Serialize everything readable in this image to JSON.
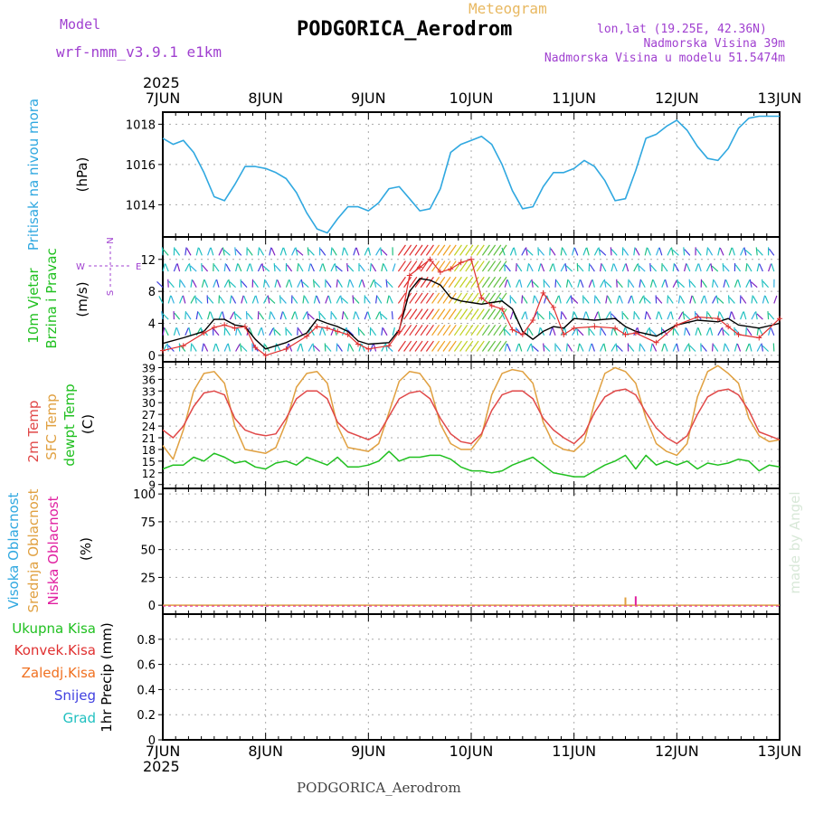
{
  "header": {
    "model_label": "Model",
    "model_name": "wrf-nmm_v3.9.1 e1km",
    "title": "PODGORICA_Aerodrom",
    "subtitle": "Meteogram",
    "coords": "lon,lat (19.25E, 42.36N)",
    "elevation": "Nadmorska Visina 39m",
    "model_elevation": "Nadmorska Visina u modelu 51.5474m",
    "year_top": "2025",
    "year_bottom": "2025",
    "footer_title": "PODGORICA_Aerodrom",
    "credit": "made by Angel"
  },
  "colors": {
    "pressure": "#30a8e0",
    "temp2m": "#e04848",
    "sfc_temp": "#e0a040",
    "dewpoint": "#20c020",
    "wind_speed": "#000000",
    "gust": "#e03030",
    "high_cloud": "#30a8e0",
    "mid_cloud": "#e0a040",
    "low_cloud": "#e020a0",
    "total_precip": "#20c020",
    "conv_precip": "#e03030",
    "frozen_precip": "#f07020",
    "snow": "#4040e0",
    "hail": "#20c0c0"
  },
  "chart_data": [
    {
      "id": "pressure",
      "type": "line",
      "ylabels": [
        "Pritisak na nivou mora",
        "(hPa)"
      ],
      "x_ticks": [
        "7JUN",
        "8JUN",
        "9JUN",
        "10JUN",
        "11JUN",
        "12JUN",
        "13JUN"
      ],
      "ylim": [
        1012.4,
        1018.6
      ],
      "yticks": [
        1014,
        1016,
        1018
      ],
      "grid": true,
      "series": [
        {
          "x": [
            0,
            0.1,
            0.2,
            0.3,
            0.4,
            0.5,
            0.6,
            0.7,
            0.8,
            0.9,
            1.0,
            1.1,
            1.2,
            1.3,
            1.4,
            1.5,
            1.6,
            1.7,
            1.8,
            1.9,
            2.0,
            2.1,
            2.2,
            2.3,
            2.4,
            2.5,
            2.6,
            2.7,
            2.8,
            2.9,
            3.0,
            3.1,
            3.2,
            3.3,
            3.4,
            3.5,
            3.6,
            3.7,
            3.8,
            3.9,
            4.0,
            4.1,
            4.2,
            4.3,
            4.4,
            4.5,
            4.6,
            4.7,
            4.8,
            4.9,
            5.0,
            5.1,
            5.2,
            5.3,
            5.4,
            5.5,
            5.6,
            5.7,
            5.8,
            5.9,
            6.0
          ],
          "values": [
            1017.3,
            1017.0,
            1017.2,
            1016.6,
            1015.6,
            1014.4,
            1014.2,
            1015.0,
            1015.9,
            1015.9,
            1015.8,
            1015.6,
            1015.3,
            1014.6,
            1013.6,
            1012.8,
            1012.6,
            1013.3,
            1013.9,
            1013.9,
            1013.7,
            1014.1,
            1014.8,
            1014.9,
            1014.3,
            1013.7,
            1013.8,
            1014.8,
            1016.6,
            1017.0,
            1017.2,
            1017.4,
            1017.0,
            1016.0,
            1014.7,
            1013.8,
            1013.9,
            1014.9,
            1015.6,
            1015.6,
            1015.8,
            1016.2,
            1015.9,
            1015.2,
            1014.2,
            1014.3,
            1015.7,
            1017.3,
            1017.5,
            1017.9,
            1018.2,
            1017.7,
            1016.9,
            1016.3,
            1016.2,
            1016.8,
            1017.8,
            1018.3,
            1018.4,
            1018.4,
            1018.4
          ]
        }
      ]
    },
    {
      "id": "wind",
      "type": "line",
      "ylabels": [
        "10m Vjetar",
        "Brzina i Pravac",
        "(m/s)"
      ],
      "compass": {
        "n": "N",
        "s": "S",
        "e": "E",
        "w": "W"
      },
      "ylim": [
        -0.8,
        14.8
      ],
      "yticks": [
        0,
        4,
        8,
        12
      ],
      "grid": true,
      "series": [
        {
          "name": "wind speed",
          "x": [
            0,
            0.2,
            0.4,
            0.5,
            0.6,
            0.7,
            0.8,
            0.9,
            1.0,
            1.2,
            1.4,
            1.5,
            1.6,
            1.7,
            1.8,
            1.9,
            2.0,
            2.2,
            2.3,
            2.4,
            2.5,
            2.6,
            2.7,
            2.8,
            2.9,
            3.0,
            3.1,
            3.2,
            3.3,
            3.4,
            3.5,
            3.6,
            3.7,
            3.8,
            3.9,
            4.0,
            4.2,
            4.4,
            4.5,
            4.6,
            4.8,
            5.0,
            5.2,
            5.4,
            5.5,
            5.6,
            5.8,
            6.0
          ],
          "values": [
            1.5,
            2.2,
            3.0,
            4.5,
            4.5,
            3.8,
            3.6,
            2.0,
            0.8,
            1.6,
            2.8,
            4.5,
            4.0,
            3.6,
            3.0,
            1.8,
            1.4,
            1.6,
            3.2,
            8.0,
            9.6,
            9.4,
            8.8,
            7.2,
            6.8,
            6.6,
            6.4,
            6.6,
            6.8,
            5.8,
            3.0,
            2.0,
            3.0,
            3.6,
            3.4,
            4.6,
            4.4,
            4.6,
            3.6,
            3.0,
            2.4,
            3.8,
            4.4,
            4.2,
            4.6,
            3.8,
            3.4,
            4.0
          ]
        },
        {
          "name": "gust",
          "x": [
            0,
            0.2,
            0.4,
            0.5,
            0.6,
            0.7,
            0.8,
            0.9,
            1.0,
            1.2,
            1.4,
            1.5,
            1.6,
            1.7,
            1.8,
            1.9,
            2.0,
            2.2,
            2.3,
            2.4,
            2.5,
            2.6,
            2.7,
            2.8,
            2.9,
            3.0,
            3.1,
            3.2,
            3.3,
            3.4,
            3.5,
            3.6,
            3.7,
            3.8,
            3.9,
            4.0,
            4.2,
            4.4,
            4.5,
            4.6,
            4.8,
            5.0,
            5.2,
            5.4,
            5.5,
            5.6,
            5.8,
            6.0
          ],
          "values": [
            0.6,
            1.2,
            2.8,
            3.5,
            3.8,
            3.4,
            3.6,
            1.0,
            0.0,
            0.8,
            2.4,
            3.6,
            3.4,
            3.0,
            2.6,
            1.4,
            0.8,
            1.2,
            3.0,
            10.0,
            11.0,
            12.0,
            10.4,
            10.8,
            11.6,
            12.0,
            7.2,
            6.2,
            5.8,
            3.2,
            2.6,
            4.4,
            7.8,
            6.0,
            2.6,
            3.4,
            3.6,
            3.4,
            2.6,
            2.8,
            1.6,
            3.8,
            4.8,
            4.6,
            3.6,
            2.6,
            2.2,
            4.6
          ]
        }
      ]
    },
    {
      "id": "temperature",
      "type": "line",
      "ylabels": [
        "2m Temp",
        "SFC Temp",
        "dewpt Temp",
        "(C)"
      ],
      "ylim": [
        8,
        40.5
      ],
      "yticks": [
        9,
        12,
        15,
        18,
        21,
        24,
        27,
        30,
        33,
        36,
        39
      ],
      "grid": true,
      "series": [
        {
          "name": "2m Temp",
          "x": [
            0,
            0.1,
            0.2,
            0.3,
            0.4,
            0.5,
            0.6,
            0.7,
            0.8,
            0.9,
            1.0,
            1.1,
            1.2,
            1.3,
            1.4,
            1.5,
            1.6,
            1.7,
            1.8,
            1.9,
            2.0,
            2.1,
            2.2,
            2.3,
            2.4,
            2.5,
            2.6,
            2.7,
            2.8,
            2.9,
            3.0,
            3.1,
            3.2,
            3.3,
            3.4,
            3.5,
            3.6,
            3.7,
            3.8,
            3.9,
            4.0,
            4.1,
            4.2,
            4.3,
            4.4,
            4.5,
            4.6,
            4.7,
            4.8,
            4.9,
            5.0,
            5.1,
            5.2,
            5.3,
            5.4,
            5.5,
            5.6,
            5.7,
            5.8,
            5.9,
            6.0
          ],
          "values": [
            23,
            21,
            24,
            29,
            32.5,
            33,
            32,
            26,
            23,
            22,
            21.5,
            22,
            26,
            31,
            33,
            33,
            31,
            25,
            22.5,
            21.5,
            20.5,
            22,
            26.5,
            31,
            32.5,
            33,
            31,
            26,
            22,
            20,
            19.5,
            22,
            28,
            32,
            33,
            33,
            31,
            26,
            23,
            21,
            19.5,
            22,
            27.5,
            31.5,
            33,
            33.5,
            32,
            27.5,
            23.5,
            21,
            19.5,
            21.5,
            27,
            31.5,
            33,
            33.5,
            32,
            28,
            22.5,
            21.5,
            20.5
          ]
        },
        {
          "name": "SFC Temp",
          "x": [
            0,
            0.1,
            0.2,
            0.3,
            0.4,
            0.5,
            0.6,
            0.7,
            0.8,
            0.9,
            1.0,
            1.1,
            1.2,
            1.3,
            1.4,
            1.5,
            1.6,
            1.7,
            1.8,
            1.9,
            2.0,
            2.1,
            2.2,
            2.3,
            2.4,
            2.5,
            2.6,
            2.7,
            2.8,
            2.9,
            3.0,
            3.1,
            3.2,
            3.3,
            3.4,
            3.5,
            3.6,
            3.7,
            3.8,
            3.9,
            4.0,
            4.1,
            4.2,
            4.3,
            4.4,
            4.5,
            4.6,
            4.7,
            4.8,
            4.9,
            5.0,
            5.1,
            5.2,
            5.3,
            5.4,
            5.5,
            5.6,
            5.7,
            5.8,
            5.9,
            6.0
          ],
          "values": [
            19,
            15.5,
            23,
            33,
            37.5,
            38,
            35,
            24,
            18,
            17.5,
            17,
            18.5,
            25,
            34,
            37.5,
            38,
            35,
            24,
            18.5,
            18,
            17.5,
            19.5,
            27.5,
            35.5,
            38,
            37.5,
            34,
            24.5,
            19.5,
            18,
            18,
            21.5,
            32,
            37.5,
            38.5,
            38,
            35,
            25,
            19.5,
            18,
            17.5,
            20,
            30,
            37.5,
            39,
            38,
            35,
            26,
            19.5,
            17.5,
            16.5,
            19.5,
            31.5,
            38,
            39.5,
            37.5,
            35,
            26,
            21.5,
            20,
            20.5
          ]
        },
        {
          "name": "dewpt Temp",
          "x": [
            0,
            0.1,
            0.2,
            0.3,
            0.4,
            0.5,
            0.6,
            0.7,
            0.8,
            0.9,
            1.0,
            1.1,
            1.2,
            1.3,
            1.4,
            1.5,
            1.6,
            1.7,
            1.8,
            1.9,
            2.0,
            2.1,
            2.2,
            2.3,
            2.4,
            2.5,
            2.6,
            2.7,
            2.8,
            2.9,
            3.0,
            3.1,
            3.2,
            3.3,
            3.4,
            3.5,
            3.6,
            3.7,
            3.8,
            3.9,
            4.0,
            4.1,
            4.2,
            4.3,
            4.4,
            4.5,
            4.6,
            4.7,
            4.8,
            4.9,
            5.0,
            5.1,
            5.2,
            5.3,
            5.4,
            5.5,
            5.6,
            5.7,
            5.8,
            5.9,
            6.0
          ],
          "values": [
            13,
            14,
            14,
            16,
            15,
            17,
            16,
            14.5,
            15,
            13.5,
            13,
            14.5,
            15,
            14,
            16,
            15,
            14,
            16,
            13.5,
            13.5,
            14,
            15,
            17.5,
            15,
            16,
            16,
            16.5,
            16.5,
            15.5,
            13.5,
            12.5,
            12.5,
            12,
            12.5,
            14,
            15,
            16,
            14,
            12,
            11.5,
            11,
            11,
            12.5,
            14,
            15,
            16.5,
            13,
            16.5,
            14,
            15,
            14,
            15,
            13,
            14.5,
            14,
            14.5,
            15.5,
            15,
            12.5,
            14,
            13.5
          ]
        }
      ]
    },
    {
      "id": "cloud",
      "type": "bar",
      "ylabels": [
        "Visoka Oblacnost",
        "Srednja Oblacnost",
        "Niska Oblacnost",
        "(%)"
      ],
      "ylim": [
        -8,
        105
      ],
      "yticks": [
        0,
        25,
        50,
        75,
        100
      ],
      "grid": true,
      "series": [
        {
          "name": "Srednja Oblacnost",
          "x": [
            4.5
          ],
          "values": [
            7
          ]
        },
        {
          "name": "Niska Oblacnost",
          "x": [
            4.6
          ],
          "values": [
            8
          ]
        }
      ]
    },
    {
      "id": "precip",
      "type": "bar",
      "ylabels": [
        "Ukupna Kisa",
        "Konvek.Kisa",
        "Zaledj.Kisa",
        "Snijeg",
        "Grad",
        "1hr Precip (mm)"
      ],
      "ylim": [
        0,
        1.0
      ],
      "yticks": [
        0,
        0.2,
        0.4,
        0.6,
        0.8
      ],
      "ytick_labels": [
        "0",
        "0.2",
        "0.4",
        "0.6",
        "0.8"
      ],
      "grid": true,
      "series": []
    }
  ]
}
